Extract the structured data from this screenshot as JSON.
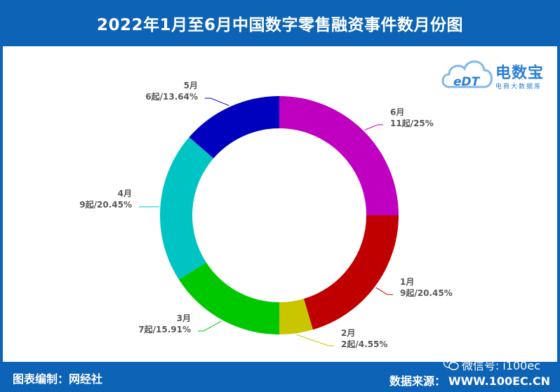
{
  "header": {
    "title": "2022年1月至6月中国数字零售融资事件数月份图"
  },
  "logo": {
    "mark": "eDT",
    "brand": "电数宝",
    "sub": "电商大数据库",
    "icon": "cloud-logo-icon"
  },
  "footer": {
    "credit": "图表编制：网经社",
    "source_label": "数据来源：",
    "source_site": "WWW.100EC.CN",
    "wechat": "微信号: i100ec",
    "wechat_icon": "wechat-icon"
  },
  "chart_data": {
    "type": "pie",
    "donut": true,
    "slices": [
      {
        "month": "1月",
        "detail": "9起/20.45%",
        "value": 9,
        "percent": 20.45,
        "color": "#c00000"
      },
      {
        "month": "2月",
        "detail": "2起/4.55%",
        "value": 2,
        "percent": 4.55,
        "color": "#c9c600"
      },
      {
        "month": "3月",
        "detail": "7起/15.91%",
        "value": 7,
        "percent": 15.91,
        "color": "#00c800"
      },
      {
        "month": "4月",
        "detail": "9起/20.45%",
        "value": 9,
        "percent": 20.45,
        "color": "#00c4c4"
      },
      {
        "month": "5月",
        "detail": "6起/13.64%",
        "value": 6,
        "percent": 13.64,
        "color": "#0000bf"
      },
      {
        "month": "6月",
        "detail": "11起/25%",
        "value": 11,
        "percent": 25,
        "color": "#c000c0"
      }
    ]
  }
}
